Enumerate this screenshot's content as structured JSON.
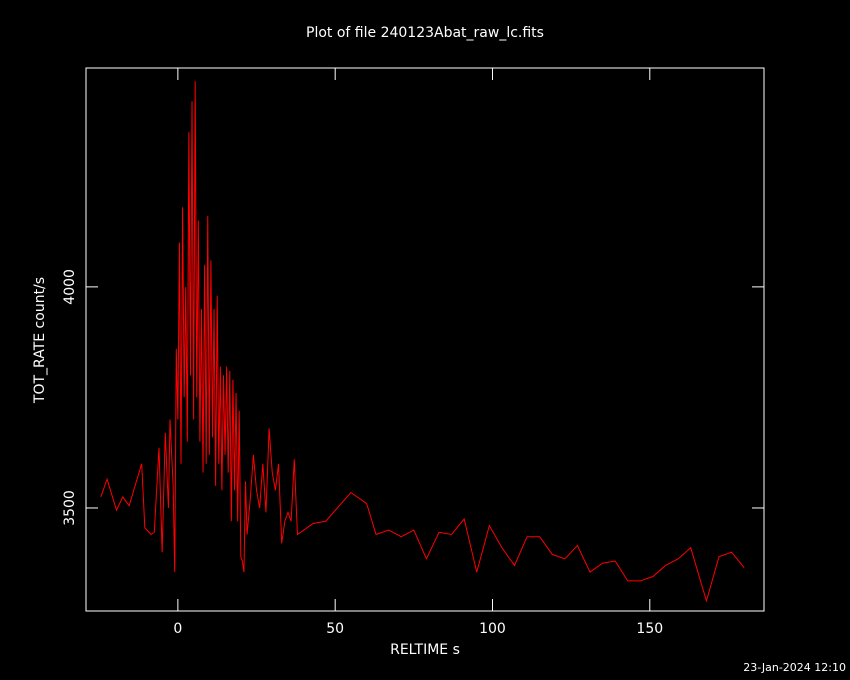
{
  "chart_data": {
    "type": "line",
    "title": "Plot of file 240123Abat_raw_lc.fits",
    "x_label": "RELTIME  s",
    "y_label": "TOT_RATE  count/s",
    "timestamp": "23-Jan-2024 12:10",
    "xlim": [
      -29.2,
      186.3
    ],
    "ylim": [
      3267,
      4495
    ],
    "xticks": [
      0,
      50,
      100,
      150
    ],
    "yticks": [
      3500,
      4000
    ],
    "x": [
      -24.5,
      -22.5,
      -19.5,
      -17.5,
      -15.5,
      -11.5,
      -10.5,
      -8.5,
      -7.5,
      -6,
      -5,
      -4,
      -3,
      -2.5,
      -1.5,
      -1,
      -0.5,
      0,
      0.5,
      1,
      1.5,
      2,
      2.5,
      3,
      3.5,
      4,
      4.5,
      5,
      5.5,
      6,
      6.5,
      7,
      7.5,
      8,
      8.5,
      9,
      9.5,
      10,
      10.5,
      11,
      11.5,
      12,
      12.5,
      13,
      13.5,
      14,
      14.5,
      15,
      15.5,
      16,
      16.5,
      17,
      17.5,
      18,
      18.5,
      19,
      19.5,
      20,
      20.5,
      21,
      21.5,
      22,
      23,
      24,
      25,
      26,
      27,
      28,
      29,
      30,
      31,
      32,
      33,
      34,
      35,
      36,
      37,
      38,
      43,
      47,
      55,
      60,
      63,
      67,
      71,
      75,
      79,
      83,
      87,
      91,
      95,
      99,
      103,
      107,
      111,
      115,
      119,
      123,
      127,
      131,
      135,
      139,
      143,
      147,
      151,
      155,
      159,
      163,
      168,
      172,
      176,
      180
    ],
    "series": [
      {
        "name": "TOT_RATE",
        "color": "#ff0000",
        "values": [
          3525,
          3565,
          3495,
          3525,
          3505,
          3600,
          3455,
          3440,
          3445,
          3636,
          3400,
          3670,
          3500,
          3700,
          3550,
          3355,
          3860,
          3700,
          4100,
          3600,
          4180,
          3750,
          4000,
          3650,
          4350,
          3800,
          4420,
          3700,
          4465,
          3750,
          4150,
          3650,
          3950,
          3580,
          4050,
          3600,
          4160,
          3620,
          4060,
          3660,
          3950,
          3550,
          3980,
          3600,
          3820,
          3540,
          3800,
          3620,
          3820,
          3580,
          3810,
          3470,
          3790,
          3540,
          3760,
          3470,
          3720,
          3390,
          3380,
          3355,
          3560,
          3440,
          3520,
          3620,
          3540,
          3500,
          3600,
          3490,
          3680,
          3580,
          3540,
          3600,
          3420,
          3470,
          3490,
          3470,
          3610,
          3440,
          3465,
          3470,
          3535,
          3510,
          3440,
          3450,
          3435,
          3450,
          3385,
          3445,
          3440,
          3475,
          3355,
          3460,
          3410,
          3370,
          3435,
          3435,
          3395,
          3385,
          3415,
          3355,
          3375,
          3380,
          3335,
          3335,
          3345,
          3370,
          3385,
          3410,
          3290,
          3390,
          3400,
          3365
        ]
      }
    ]
  }
}
